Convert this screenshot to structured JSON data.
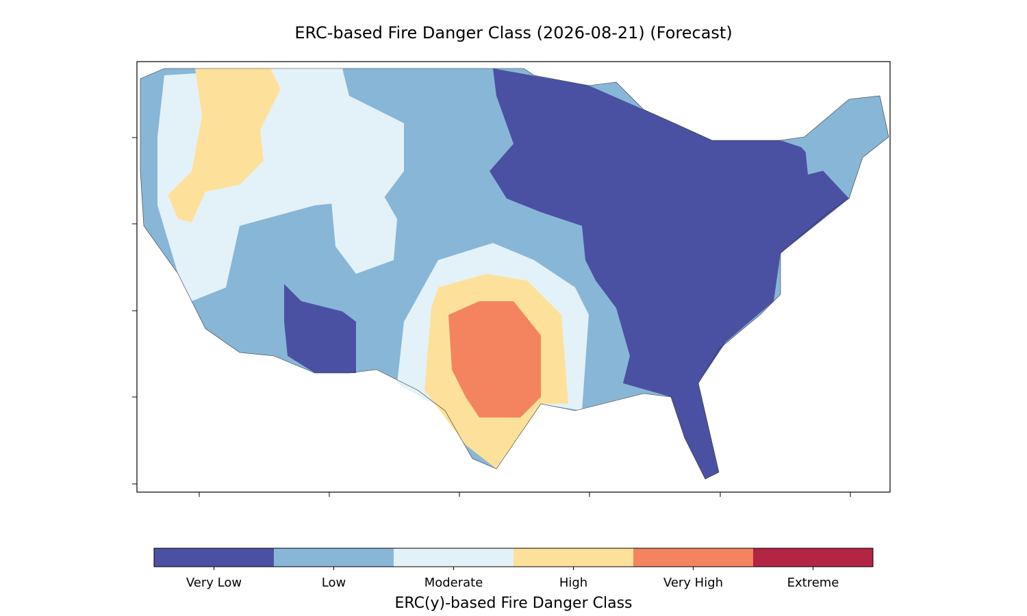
{
  "title": "ERC-based Fire Danger Class (2026-08-21) (Forecast)",
  "colorbar": {
    "label": "ERC(y)-based Fire Danger Class",
    "classes": [
      {
        "label": "Very Low",
        "color": "#4a51a3"
      },
      {
        "label": "Low",
        "color": "#88b6d7"
      },
      {
        "label": "Moderate",
        "color": "#e3f2f8"
      },
      {
        "label": "High",
        "color": "#fde19b"
      },
      {
        "label": "Very High",
        "color": "#f4845f"
      },
      {
        "label": "Extreme",
        "color": "#b22545"
      }
    ]
  }
}
